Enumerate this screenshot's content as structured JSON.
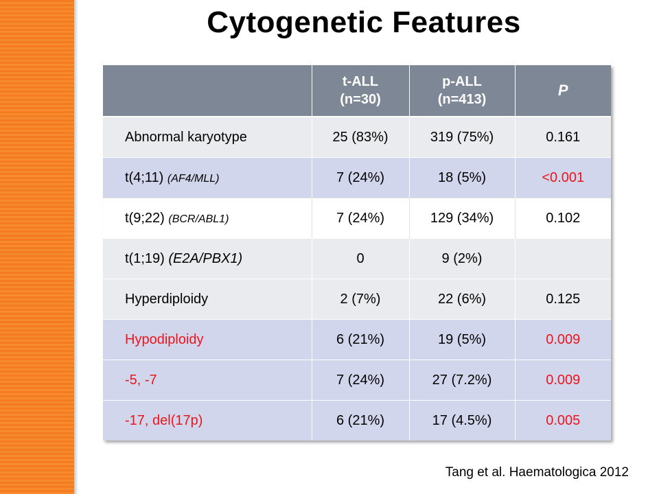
{
  "slide": {
    "title": "Cytogenetic Features",
    "citation": "Tang et al. Haematologica 2012",
    "accent_color": "#f47b20"
  },
  "table": {
    "headers": {
      "col0": "",
      "t_all_line1": "t-ALL",
      "t_all_line2": "(n=30)",
      "p_all_line1": "p-ALL",
      "p_all_line2": "(n=413)",
      "p_value": "P"
    },
    "rows": [
      {
        "label": "Abnormal karyotype",
        "t_all": "25 (83%)",
        "p_all": "319 (75%)",
        "p": "0.161"
      },
      {
        "label": "t(4;11)",
        "gene": "(AF4/MLL)",
        "t_all": "7 (24%)",
        "p_all": "18 (5%)",
        "p": "<0.001"
      },
      {
        "label": "t(9;22)",
        "gene": "(BCR/ABL1)",
        "t_all": "7 (24%)",
        "p_all": "129 (34%)",
        "p": "0.102"
      },
      {
        "label": "t(1;19)",
        "gene": "(E2A/PBX1)",
        "t_all": "0",
        "p_all": "9 (2%)",
        "p": ""
      },
      {
        "label": "Hyperdiploidy",
        "t_all": "2 (7%)",
        "p_all": "22 (6%)",
        "p": "0.125"
      },
      {
        "label": "Hypodiploidy",
        "t_all": "6 (21%)",
        "p_all": "19 (5%)",
        "p": "0.009"
      },
      {
        "label": "-5, -7",
        "t_all": "7 (24%)",
        "p_all": "27 (7.2%)",
        "p": "0.009"
      },
      {
        "label": "-17, del(17p)",
        "t_all": "6 (21%)",
        "p_all": "17 (4.5%)",
        "p": "0.005"
      }
    ]
  }
}
